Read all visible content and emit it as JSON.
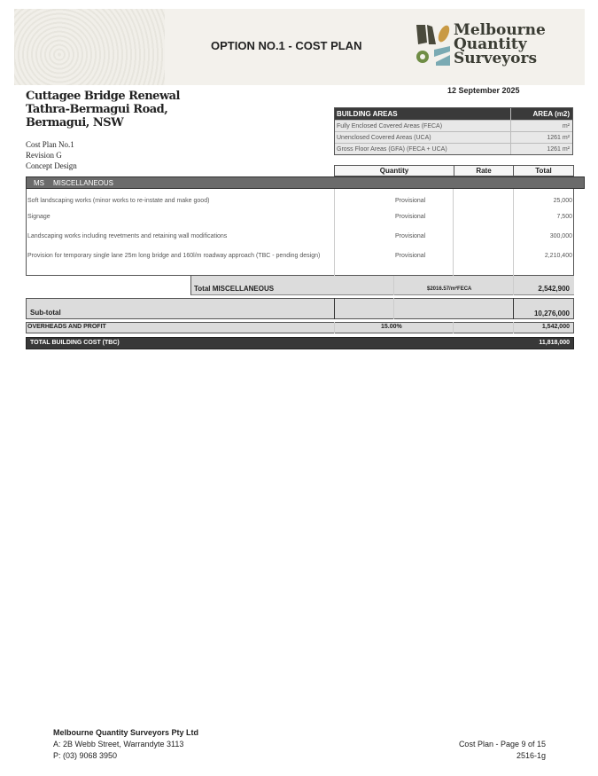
{
  "header": {
    "title": "OPTION NO.1 - COST PLAN",
    "logo": "Melbourne Quantity Surveyors",
    "colors": {
      "olive": "#4a4a3c",
      "gold": "#c99a44",
      "green": "#6f8d45",
      "teal": "#7aaab3"
    }
  },
  "project": {
    "line1": "Cuttagee Bridge Renewal",
    "line2": "Tathra-Bermagui Road,",
    "line3": "Bermagui, NSW",
    "plan": "Cost Plan No.1",
    "revision": "Revision G",
    "stage": "Concept Design",
    "date": "12 September 2025"
  },
  "building_areas": {
    "header": "BUILDING AREAS",
    "area_header": "AREA (m2)",
    "rows": [
      {
        "label": "Fully Enclosed Covered Areas (FECA)",
        "value": "m²"
      },
      {
        "label": "Unenclosed Covered Areas (UCA)",
        "value": "1261 m²"
      },
      {
        "label": "Gross Floor Areas (GFA) (FECA + UCA)",
        "value": "1261 m²"
      }
    ]
  },
  "columns": {
    "quantity": "Quantity",
    "rate": "Rate",
    "total": "Total"
  },
  "section": {
    "code": "MS",
    "name": "MISCELLANEOUS"
  },
  "items": [
    {
      "desc": "Soft landscaping works (minor works to re-instate and make good)",
      "qty": "Provisional",
      "total": "25,000"
    },
    {
      "desc": "Signage",
      "qty": "Provisional",
      "total": "7,500"
    },
    {
      "desc": "Landscaping works including revetments and retaining wall modifications",
      "qty": "Provisional",
      "total": "300,000"
    },
    {
      "desc": "Provision for temporary single lane 25m long bridge and 160l/m roadway approach (TBC - pending design)",
      "qty": "Provisional",
      "total": "2,210,400"
    }
  ],
  "section_total": {
    "label": "Total MISCELLANEOUS",
    "rate": "$2016.57/m²FECA",
    "total": "2,542,900"
  },
  "subtotal": {
    "label": "Sub-total",
    "total": "10,276,000"
  },
  "overheads": {
    "label": "OVERHEADS AND PROFIT",
    "rate": "15.00%",
    "total": "1,542,000"
  },
  "grand_total": {
    "label": "TOTAL BUILDING COST (TBC)",
    "total": "11,818,000"
  },
  "footer": {
    "company": "Melbourne Quantity Surveyors Pty Ltd",
    "address": "A: 2B Webb Street, Warrandyte 3113",
    "phone": "P: (03) 9068 3950",
    "page": "Cost Plan - Page 9 of 15",
    "ref": "2516-1g"
  }
}
